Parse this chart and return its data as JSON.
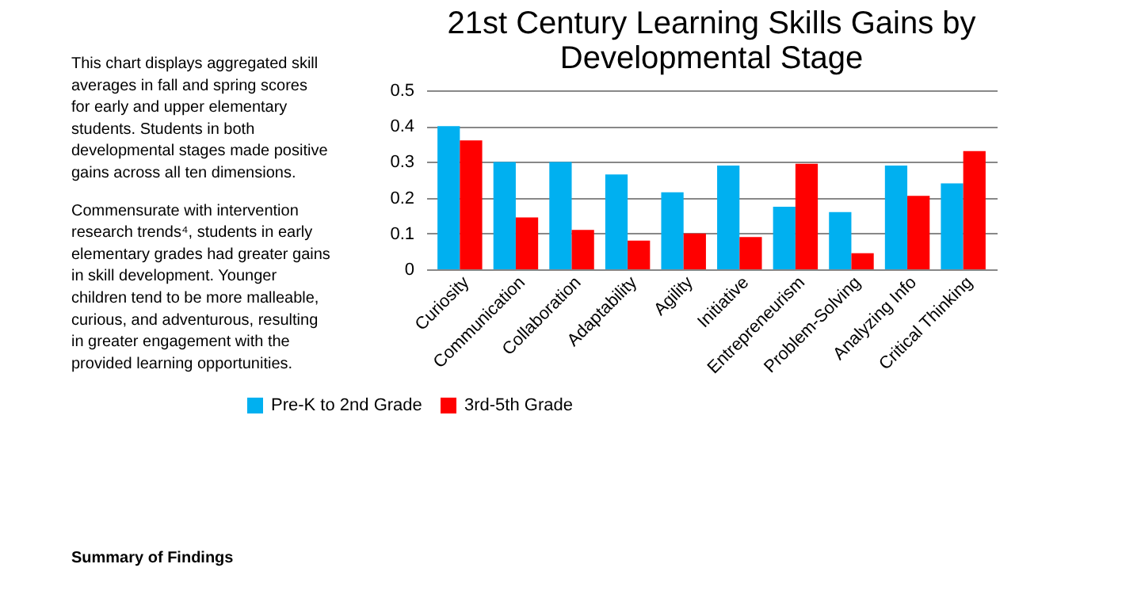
{
  "chart_data": {
    "type": "bar",
    "title": "21st Century Learning Skills Gains by Developmental Stage",
    "categories": [
      "Curiosity",
      "Communication",
      "Collaboration",
      "Adaptability",
      "Agility",
      "Initiative",
      "Entrepreneurism",
      "Problem-Solving",
      "Analyzing Info",
      "Critical Thinking"
    ],
    "series": [
      {
        "name": "Pre-K to 2nd Grade",
        "color": "#00b0f0",
        "values": [
          0.4,
          0.3,
          0.3,
          0.265,
          0.215,
          0.29,
          0.175,
          0.16,
          0.29,
          0.24
        ]
      },
      {
        "name": "3rd-5th Grade",
        "color": "#ff0000",
        "values": [
          0.36,
          0.145,
          0.11,
          0.08,
          0.1,
          0.09,
          0.295,
          0.045,
          0.205,
          0.33
        ]
      }
    ],
    "ylim": [
      0,
      0.5
    ],
    "yticks": [
      0,
      0.1,
      0.2,
      0.3,
      0.4,
      0.5
    ],
    "grid": "y",
    "legend": "bottom",
    "annotations": [
      "This chart displays aggregated skill averages in fall and spring scores for early and upper elementary students. Students in both developmental stages made positive gains across all ten dimensions.",
      "Commensurate with intervention research trends⁴, students in early elementary grades had greater gains in skill development. Younger children tend to be more malleable, curious, and adventurous, resulting in greater engagement with the provided learning opportunities.",
      "Summary of Findings"
    ]
  }
}
